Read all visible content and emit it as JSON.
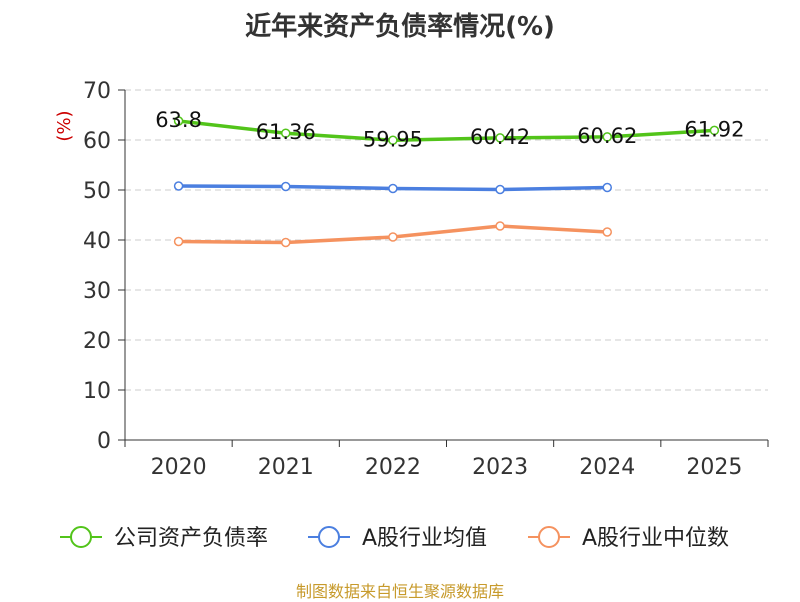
{
  "title": "近年来资产负债率情况(%)",
  "source": "制图数据来自恒生聚源数据库",
  "colors": {
    "series_1": "#52c41a",
    "series_2": "#4b7fe0",
    "series_3": "#f5925f",
    "unit": "#cc0000",
    "axis": "#333333",
    "grid": "#cccccc"
  },
  "chart_data": {
    "type": "line",
    "title": "近年来资产负债率情况(%)",
    "ylabel": "(%)",
    "xlabel": "",
    "categories": [
      "2020",
      "2021",
      "2022",
      "2023",
      "2024",
      "2025"
    ],
    "ylim": [
      0,
      70
    ],
    "yticks": [
      0,
      10,
      20,
      30,
      40,
      50,
      60,
      70
    ],
    "grid": "horizontal dashed",
    "legend_position": "bottom",
    "series": [
      {
        "name": "公司资产负债率",
        "values": [
          63.8,
          61.36,
          59.95,
          60.42,
          60.62,
          61.92
        ],
        "labels": [
          "63.8",
          "61.36",
          "59.95",
          "60.42",
          "60.62",
          "61.92"
        ]
      },
      {
        "name": "A股行业均值",
        "values": [
          50.8,
          50.7,
          50.3,
          50.1,
          50.5,
          null
        ]
      },
      {
        "name": "A股行业中位数",
        "values": [
          39.7,
          39.5,
          40.6,
          42.8,
          41.6,
          null
        ]
      }
    ]
  }
}
